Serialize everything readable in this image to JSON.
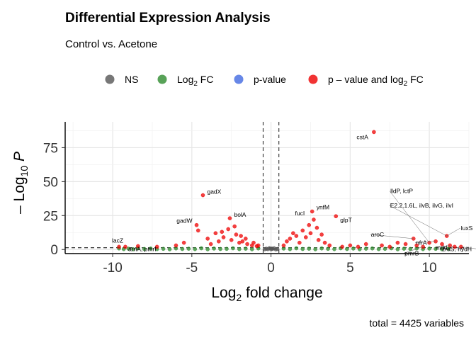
{
  "chart_data": {
    "type": "scatter",
    "title": "Differential Expression Analysis",
    "subtitle": "Control vs. Acetone",
    "xlabel": {
      "base": "Log",
      "sub": "2",
      "rest": " fold change"
    },
    "ylabel": {
      "prefix": "– Log",
      "sub": "10",
      "italic": "P"
    },
    "caption": "total = 4425 variables",
    "xlim": [
      -13,
      12.5
    ],
    "ylim": [
      -3,
      94
    ],
    "xticks": [
      -10,
      -5,
      0,
      5,
      10
    ],
    "xtick_labels": [
      "-10",
      "-5",
      "0",
      "5",
      "10"
    ],
    "yticks": [
      0,
      25,
      50,
      75
    ],
    "ytick_labels": [
      "0",
      "25",
      "50",
      "75"
    ],
    "grid": true,
    "fc_cutoff": 0.5,
    "p_cutoff_neglog10": 1.3,
    "legend_position": "top",
    "legend": [
      {
        "key": "ns",
        "label": "NS",
        "color": "#555555"
      },
      {
        "key": "fc",
        "label": "Log",
        "sub": "2",
        "after": " FC",
        "color": "#2e8b2e"
      },
      {
        "key": "p",
        "label": "p-value",
        "color": "#4169e1"
      },
      {
        "key": "both",
        "label": "p – value and log",
        "sub": "2",
        "after": " FC",
        "color": "#ee0000"
      }
    ],
    "series": [
      {
        "name": "NS",
        "color": "#555555",
        "points": [
          [
            0.0,
            0.2
          ],
          [
            0.1,
            0.5
          ],
          [
            -0.2,
            0.3
          ],
          [
            0.3,
            0.1
          ],
          [
            -0.3,
            0.6
          ],
          [
            0.2,
            0.9
          ],
          [
            -0.1,
            1.0
          ],
          [
            0.4,
            0.4
          ],
          [
            -0.4,
            0.2
          ],
          [
            0.05,
            0.7
          ]
        ]
      },
      {
        "name": "Log2 FC",
        "color": "#2e8b2e",
        "points": [
          [
            -9.6,
            0.8
          ],
          [
            -9.3,
            0.3
          ],
          [
            -9.0,
            0.6
          ],
          [
            -8.7,
            0.2
          ],
          [
            -8.4,
            0.9
          ],
          [
            -8.0,
            0.4
          ],
          [
            -7.6,
            0.7
          ],
          [
            -7.2,
            0.3
          ],
          [
            -6.8,
            0.5
          ],
          [
            -6.4,
            0.2
          ],
          [
            -6.0,
            0.8
          ],
          [
            -5.6,
            0.4
          ],
          [
            -5.2,
            0.6
          ],
          [
            -4.8,
            0.3
          ],
          [
            -4.4,
            0.9
          ],
          [
            -4.0,
            0.2
          ],
          [
            -3.6,
            0.7
          ],
          [
            -3.2,
            0.4
          ],
          [
            -2.8,
            0.5
          ],
          [
            -2.4,
            0.9
          ],
          [
            -2.0,
            0.3
          ],
          [
            -1.6,
            0.6
          ],
          [
            -1.2,
            0.2
          ],
          [
            -0.8,
            0.8
          ],
          [
            0.8,
            0.7
          ],
          [
            1.2,
            0.3
          ],
          [
            1.6,
            0.9
          ],
          [
            2.0,
            0.4
          ],
          [
            2.4,
            0.6
          ],
          [
            2.8,
            0.2
          ],
          [
            3.2,
            0.8
          ],
          [
            3.6,
            0.5
          ],
          [
            4.0,
            0.3
          ],
          [
            4.4,
            0.9
          ],
          [
            4.8,
            0.4
          ],
          [
            5.2,
            0.7
          ],
          [
            5.6,
            0.2
          ],
          [
            6.0,
            0.6
          ],
          [
            6.4,
            0.8
          ],
          [
            6.8,
            0.3
          ],
          [
            7.2,
            0.5
          ],
          [
            7.6,
            0.9
          ],
          [
            8.0,
            0.2
          ],
          [
            8.4,
            0.6
          ],
          [
            8.8,
            0.4
          ],
          [
            9.2,
            0.8
          ],
          [
            9.6,
            0.3
          ],
          [
            10.0,
            0.7
          ],
          [
            10.4,
            0.5
          ],
          [
            10.8,
            0.2
          ],
          [
            11.2,
            0.6
          ]
        ]
      },
      {
        "name": "p-value",
        "color": "#4169e1",
        "points": []
      },
      {
        "name": "p – value and log2 FC",
        "color": "#ee0000",
        "points": [
          [
            -4.3,
            40
          ],
          [
            -2.6,
            23
          ],
          [
            -4.7,
            18
          ],
          [
            -4.6,
            14
          ],
          [
            -3.5,
            12
          ],
          [
            -3.0,
            9
          ],
          [
            -2.5,
            7
          ],
          [
            -2.2,
            11
          ],
          [
            -1.8,
            6
          ],
          [
            -1.5,
            4
          ],
          [
            -1.2,
            3
          ],
          [
            -0.9,
            2.5
          ],
          [
            -2.7,
            15
          ],
          [
            -3.3,
            6
          ],
          [
            -2.0,
            5
          ],
          [
            -1.6,
            8
          ],
          [
            -3.8,
            4
          ],
          [
            -6.0,
            3
          ],
          [
            -7.2,
            2
          ],
          [
            -8.4,
            2.5
          ],
          [
            -5.5,
            5
          ],
          [
            -4.0,
            8
          ],
          [
            -3.1,
            13
          ],
          [
            -2.3,
            17
          ],
          [
            -1.9,
            10
          ],
          [
            -1.1,
            5
          ],
          [
            -0.8,
            3
          ],
          [
            -9.6,
            2
          ],
          [
            -9.2,
            2
          ],
          [
            0.8,
            3
          ],
          [
            1.0,
            6
          ],
          [
            1.2,
            8
          ],
          [
            1.4,
            12
          ],
          [
            1.6,
            10
          ],
          [
            1.8,
            5
          ],
          [
            2.0,
            14
          ],
          [
            2.2,
            9
          ],
          [
            2.4,
            18
          ],
          [
            2.5,
            12
          ],
          [
            2.6,
            28
          ],
          [
            2.7,
            22
          ],
          [
            2.9,
            16
          ],
          [
            3.0,
            7
          ],
          [
            3.2,
            11
          ],
          [
            3.4,
            5
          ],
          [
            3.7,
            3
          ],
          [
            4.1,
            24.5
          ],
          [
            4.5,
            2
          ],
          [
            6.5,
            86.5
          ],
          [
            5.0,
            3
          ],
          [
            5.5,
            2
          ],
          [
            6.0,
            4
          ],
          [
            7.0,
            3
          ],
          [
            7.5,
            2
          ],
          [
            8.0,
            5
          ],
          [
            8.5,
            4
          ],
          [
            9.0,
            8
          ],
          [
            9.2,
            3
          ],
          [
            9.6,
            2
          ],
          [
            10.0,
            5
          ],
          [
            10.4,
            6
          ],
          [
            10.8,
            4
          ],
          [
            11.1,
            10
          ],
          [
            11.3,
            3
          ],
          [
            11.6,
            2
          ],
          [
            12.0,
            2
          ]
        ]
      }
    ],
    "annotations": [
      {
        "text": "cstA",
        "x": 6.5,
        "y": 86.5
      },
      {
        "text": "gadX",
        "x": -4.3,
        "y": 40
      },
      {
        "text": "gadW",
        "x": -4.7,
        "y": 18
      },
      {
        "text": "bolA",
        "x": -2.6,
        "y": 23
      },
      {
        "text": "ynfM",
        "x": 2.6,
        "y": 28
      },
      {
        "text": "fucI",
        "x": 2.4,
        "y": 24
      },
      {
        "text": "glpT",
        "x": 4.1,
        "y": 24.5
      },
      {
        "text": "lacZ",
        "x": -9.6,
        "y": 2
      },
      {
        "text": "arnA, pmrI",
        "x": -9.2,
        "y": 2
      },
      {
        "text": "lldP, lctP",
        "x": 10.0,
        "y": 5
      },
      {
        "text": "E2.2.1.6L, ilvB, ilvG, ilvI",
        "x": 11.1,
        "y": 10
      },
      {
        "text": "luxS",
        "x": 11.1,
        "y": 10
      },
      {
        "text": "aroC",
        "x": 9.0,
        "y": 8
      },
      {
        "text": "nfrA",
        "x": 10.4,
        "y": 6
      },
      {
        "text": "zraS, hydH",
        "x": 10.8,
        "y": 4
      },
      {
        "text": "pmrB",
        "x": 9.6,
        "y": 2
      },
      {
        "text": "mdtL",
        "x": 11.3,
        "y": 3
      },
      {
        "text": "ilvD",
        "x": 12.0,
        "y": 2
      }
    ]
  }
}
